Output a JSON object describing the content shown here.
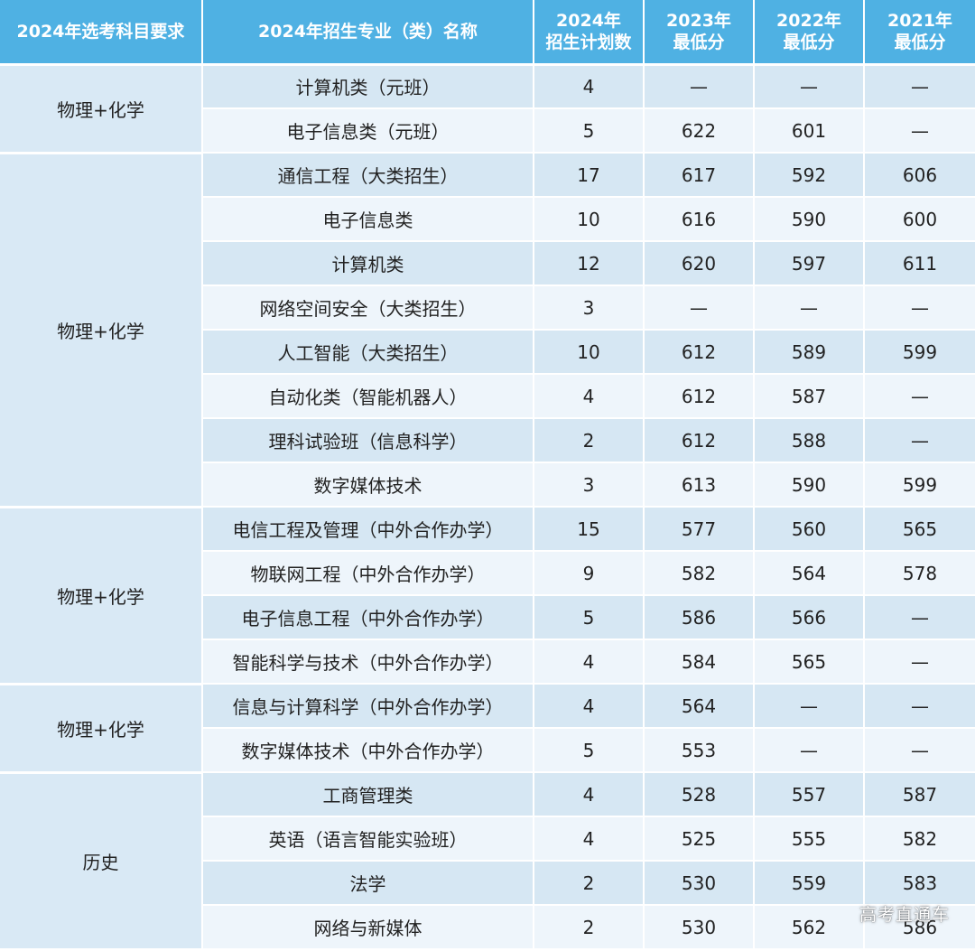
{
  "headers": [
    "2024年选考科目要求",
    "2024年招生专业（类）名称",
    "2024年\n招生计划数",
    "2023年\n最低分",
    "2022年\n最低分",
    "2021年\n最低分"
  ],
  "groups": [
    {
      "subject": "物理+化学",
      "rows": [
        [
          "计算机类（元班）",
          "4",
          "—",
          "—",
          "—"
        ],
        [
          "电子信息类（元班）",
          "5",
          "622",
          "601",
          "—"
        ]
      ]
    },
    {
      "subject": "物理+化学",
      "rows": [
        [
          "通信工程（大类招生）",
          "17",
          "617",
          "592",
          "606"
        ],
        [
          "电子信息类",
          "10",
          "616",
          "590",
          "600"
        ],
        [
          "计算机类",
          "12",
          "620",
          "597",
          "611"
        ],
        [
          "网络空间安全（大类招生）",
          "3",
          "—",
          "—",
          "—"
        ],
        [
          "人工智能（大类招生）",
          "10",
          "612",
          "589",
          "599"
        ],
        [
          "自动化类（智能机器人）",
          "4",
          "612",
          "587",
          "—"
        ],
        [
          "理科试验班（信息科学）",
          "2",
          "612",
          "588",
          "—"
        ],
        [
          "数字媒体技术",
          "3",
          "613",
          "590",
          "599"
        ]
      ]
    },
    {
      "subject": "物理+化学",
      "rows": [
        [
          "电信工程及管理（中外合作办学）",
          "15",
          "577",
          "560",
          "565"
        ],
        [
          "物联网工程（中外合作办学）",
          "9",
          "582",
          "564",
          "578"
        ],
        [
          "电子信息工程（中外合作办学）",
          "5",
          "586",
          "566",
          "—"
        ],
        [
          "智能科学与技术（中外合作办学）",
          "4",
          "584",
          "565",
          "—"
        ]
      ]
    },
    {
      "subject": "物理+化学",
      "rows": [
        [
          "信息与计算科学（中外合作办学）",
          "4",
          "564",
          "—",
          "—"
        ],
        [
          "数字媒体技术（中外合作办学）",
          "5",
          "553",
          "—",
          "—"
        ]
      ]
    },
    {
      "subject": "历史",
      "rows": [
        [
          "工商管理类",
          "4",
          "528",
          "557",
          "587"
        ],
        [
          "英语（语言智能实验班）",
          "4",
          "525",
          "555",
          "582"
        ],
        [
          "法学",
          "2",
          "530",
          "559",
          "583"
        ],
        [
          "网络与新媒体",
          "2",
          "530",
          "562",
          "586"
        ]
      ]
    }
  ],
  "watermark": "高考直通车",
  "colors": {
    "header_bg": "#4fb1e3",
    "row_shade": "#d6e7f3",
    "row_light": "#eef5fb",
    "group_bg": "#d9e9f5"
  }
}
